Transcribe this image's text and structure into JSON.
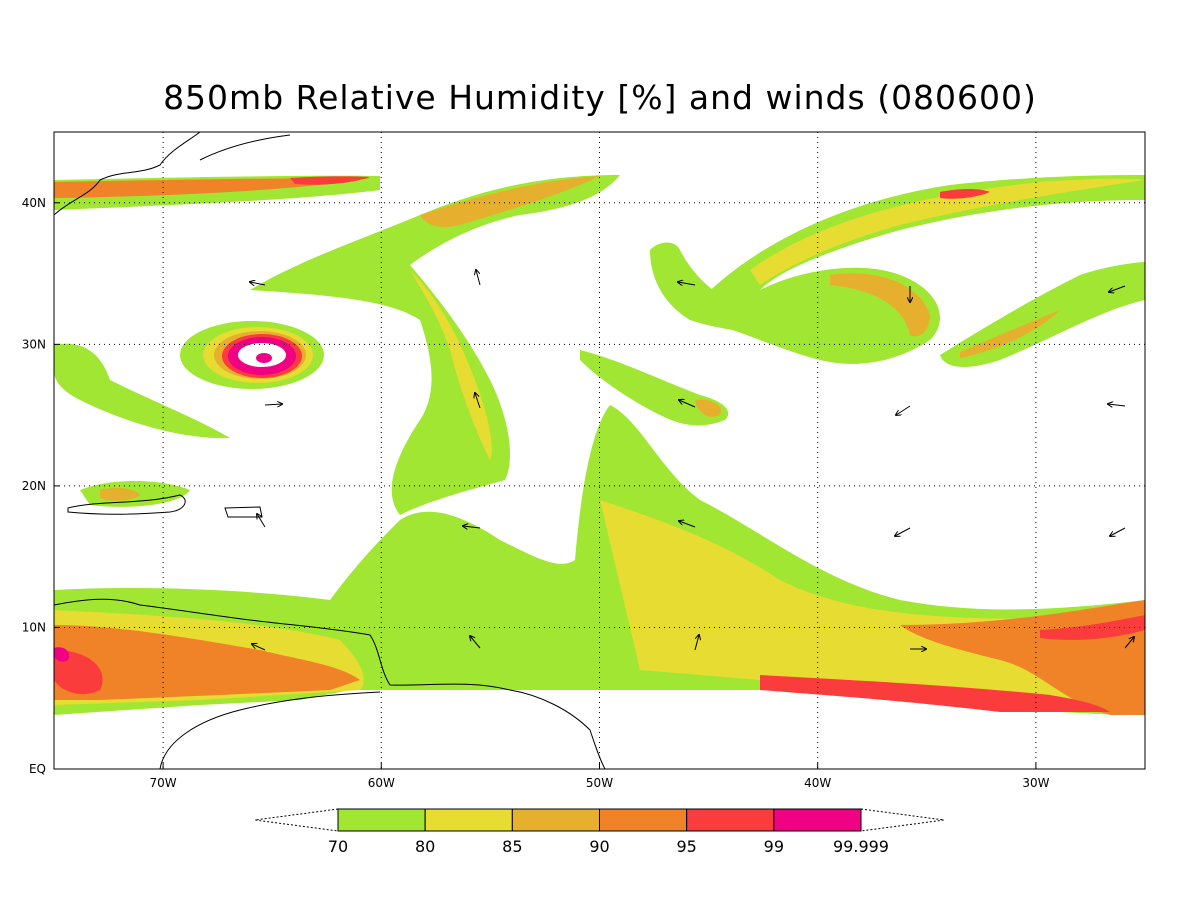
{
  "title": "850mb Relative Humidity [%] and winds (080600)",
  "map": {
    "lon_range": [
      -75,
      -25
    ],
    "lat_range": [
      0,
      45
    ],
    "lon_ticks": [
      {
        "value": -70,
        "label": "70W"
      },
      {
        "value": -60,
        "label": "60W"
      },
      {
        "value": -50,
        "label": "50W"
      },
      {
        "value": -40,
        "label": "40W"
      },
      {
        "value": -30,
        "label": "30W"
      }
    ],
    "lat_ticks": [
      {
        "value": 0,
        "label": "EQ"
      },
      {
        "value": 10,
        "label": "10N"
      },
      {
        "value": 20,
        "label": "20N"
      },
      {
        "value": 30,
        "label": "30N"
      },
      {
        "value": 40,
        "label": "40N"
      }
    ],
    "grid": "dotted",
    "hurricane_center": {
      "lon": -65.5,
      "lat": 29
    }
  },
  "colorbar": {
    "labels": [
      "70",
      "80",
      "85",
      "90",
      "95",
      "99",
      "99.999"
    ],
    "colors": [
      "#a0e632",
      "#e6dc32",
      "#e6af2d",
      "#f08228",
      "#fa3c3c",
      "#f00082"
    ]
  }
}
